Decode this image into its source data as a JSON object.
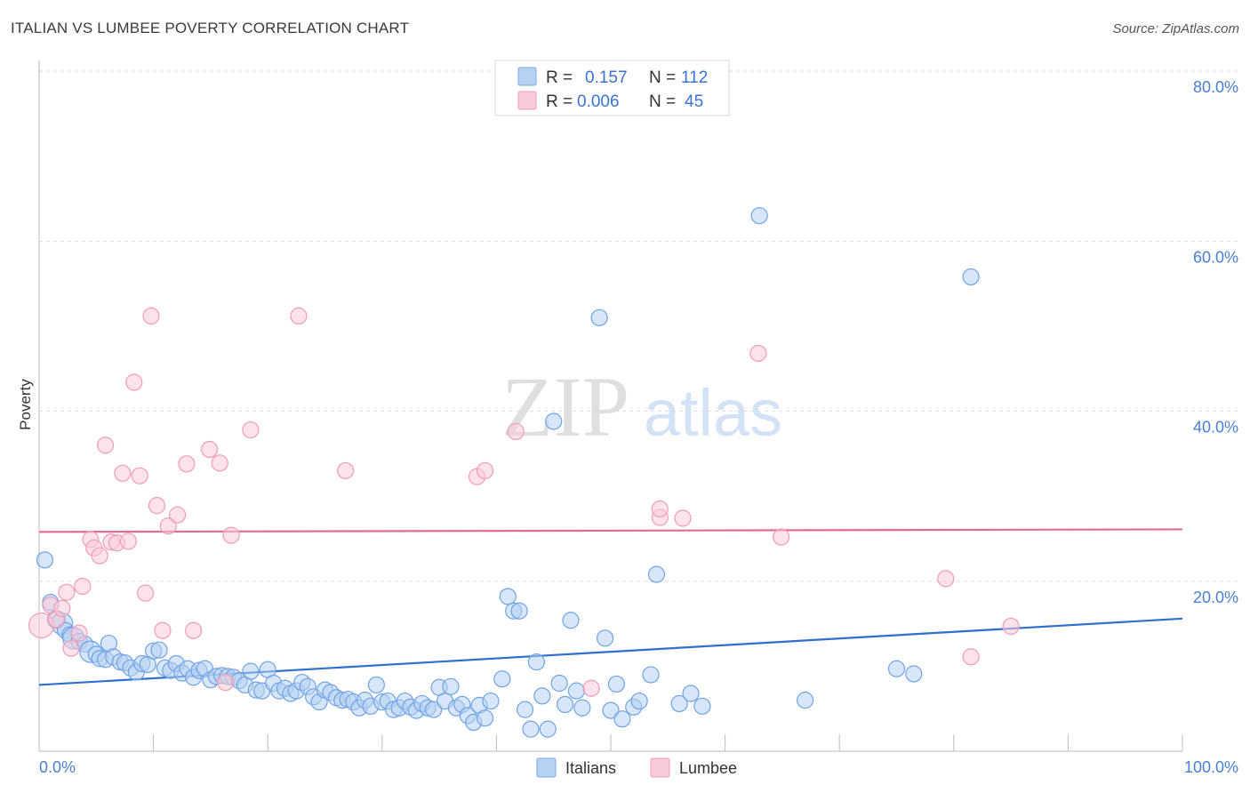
{
  "header": {
    "title": "ITALIAN VS LUMBEE POVERTY CORRELATION CHART",
    "source": "Source: ZipAtlas.com"
  },
  "watermark": {
    "zip": "ZIP",
    "atlas": "atlas"
  },
  "legend": {
    "rows": [
      {
        "r_label": "R =",
        "r_value": "0.157",
        "n_label": "N =",
        "n_value": "112",
        "color": "#a8c8f0"
      },
      {
        "r_label": "R =",
        "r_value": "0.006",
        "n_label": "N =",
        "n_value": "45",
        "color": "#f7b8cc"
      }
    ]
  },
  "chart_data": {
    "type": "scatter",
    "title": "ITALIAN VS LUMBEE POVERTY CORRELATION CHART",
    "xlabel": "",
    "ylabel": "Poverty",
    "xlim": [
      0,
      100
    ],
    "ylim": [
      0,
      80
    ],
    "x_tick_labels": [
      "0.0%",
      "100.0%"
    ],
    "y_ticks": [
      20,
      40,
      60,
      80
    ],
    "y_tick_labels": [
      "20.0%",
      "40.0%",
      "60.0%",
      "80.0%"
    ],
    "grid": true,
    "legend_position": "top-center",
    "series": [
      {
        "name": "Italians",
        "color": "#6fa3e6",
        "fill": "#b7d1f3",
        "trend": {
          "x": [
            0,
            100
          ],
          "y": [
            7.8,
            15.6
          ],
          "color": "#2f6fcf"
        },
        "points": [
          [
            0.5,
            22.5,
            9
          ],
          [
            1,
            17.5,
            9
          ],
          [
            1.5,
            15.5,
            10
          ],
          [
            2,
            15,
            12
          ],
          [
            2.3,
            14.2,
            9
          ],
          [
            2.7,
            13.7,
            9
          ],
          [
            3,
            13.3,
            12
          ],
          [
            3.5,
            12.9,
            9
          ],
          [
            4,
            12.6,
            9
          ],
          [
            4.5,
            11.7,
            12
          ],
          [
            5,
            11.4,
            9
          ],
          [
            5.3,
            10.9,
            9
          ],
          [
            5.8,
            10.8,
            9
          ],
          [
            6.1,
            12.7,
            9
          ],
          [
            6.5,
            11.1,
            9
          ],
          [
            7.1,
            10.5,
            9
          ],
          [
            7.5,
            10.4,
            9
          ],
          [
            8,
            9.8,
            9
          ],
          [
            8.5,
            9.3,
            9
          ],
          [
            9,
            10.3,
            9
          ],
          [
            9.5,
            10.2,
            9
          ],
          [
            10,
            11.8,
            9
          ],
          [
            10.5,
            11.9,
            9
          ],
          [
            11,
            9.8,
            9
          ],
          [
            11.5,
            9.5,
            9
          ],
          [
            12,
            10.3,
            9
          ],
          [
            12.5,
            9.2,
            9
          ],
          [
            13,
            9.7,
            9
          ],
          [
            13.5,
            8.7,
            9
          ],
          [
            14,
            9.5,
            9
          ],
          [
            14.5,
            9.7,
            9
          ],
          [
            15,
            8.4,
            9
          ],
          [
            15.5,
            8.8,
            9
          ],
          [
            16,
            8.9,
            9
          ],
          [
            16.5,
            8.8,
            9
          ],
          [
            17,
            8.7,
            9
          ],
          [
            17.5,
            8.3,
            9
          ],
          [
            18,
            7.8,
            9
          ],
          [
            18.5,
            9.4,
            9
          ],
          [
            19,
            7.2,
            9
          ],
          [
            19.5,
            7.1,
            9
          ],
          [
            20,
            9.6,
            9
          ],
          [
            20.5,
            8,
            9
          ],
          [
            21,
            7.1,
            9
          ],
          [
            21.5,
            7.4,
            9
          ],
          [
            22,
            6.8,
            9
          ],
          [
            22.5,
            7.1,
            9
          ],
          [
            23,
            8.1,
            9
          ],
          [
            23.5,
            7.6,
            9
          ],
          [
            24,
            6.4,
            9
          ],
          [
            24.5,
            5.8,
            9
          ],
          [
            25,
            7.2,
            9
          ],
          [
            25.5,
            6.9,
            9
          ],
          [
            26,
            6.3,
            9
          ],
          [
            26.5,
            6,
            9
          ],
          [
            27,
            6.1,
            9
          ],
          [
            27.5,
            5.8,
            9
          ],
          [
            28,
            5.1,
            9
          ],
          [
            28.5,
            6,
            9
          ],
          [
            29,
            5.3,
            9
          ],
          [
            29.5,
            7.8,
            9
          ],
          [
            30,
            5.8,
            9
          ],
          [
            30.5,
            5.9,
            9
          ],
          [
            31,
            4.9,
            9
          ],
          [
            31.5,
            5.1,
            9
          ],
          [
            32,
            5.9,
            9
          ],
          [
            32.5,
            5.2,
            9
          ],
          [
            33,
            4.8,
            9
          ],
          [
            33.5,
            5.6,
            9
          ],
          [
            34,
            5.1,
            9
          ],
          [
            34.5,
            4.9,
            9
          ],
          [
            35,
            7.5,
            9
          ],
          [
            35.5,
            5.9,
            9
          ],
          [
            36,
            7.6,
            9
          ],
          [
            36.5,
            5.1,
            9
          ],
          [
            37,
            5.5,
            9
          ],
          [
            37.5,
            4.2,
            9
          ],
          [
            38,
            3.4,
            9
          ],
          [
            38.5,
            5.4,
            9
          ],
          [
            39,
            3.9,
            9
          ],
          [
            39.5,
            5.9,
            9
          ],
          [
            40.5,
            8.5,
            9
          ],
          [
            41,
            18.2,
            9
          ],
          [
            41.5,
            16.5,
            9
          ],
          [
            42,
            16.5,
            9
          ],
          [
            42.5,
            4.9,
            9
          ],
          [
            43,
            2.6,
            9
          ],
          [
            43.5,
            10.5,
            9
          ],
          [
            44,
            6.5,
            9
          ],
          [
            44.5,
            2.6,
            9
          ],
          [
            45,
            38.8,
            9
          ],
          [
            45.5,
            8,
            9
          ],
          [
            46,
            5.5,
            9
          ],
          [
            46.5,
            15.4,
            9
          ],
          [
            47,
            7.1,
            9
          ],
          [
            47.5,
            5.1,
            9
          ],
          [
            49,
            51,
            9
          ],
          [
            49.5,
            13.3,
            9
          ],
          [
            50,
            4.8,
            9
          ],
          [
            50.5,
            7.9,
            9
          ],
          [
            51,
            3.8,
            9
          ],
          [
            52,
            5.2,
            9
          ],
          [
            52.5,
            5.9,
            9
          ],
          [
            53.5,
            9,
            9
          ],
          [
            54,
            20.8,
            9
          ],
          [
            56,
            5.6,
            9
          ],
          [
            57,
            6.8,
            9
          ],
          [
            58,
            5.3,
            9
          ],
          [
            63,
            63,
            9
          ],
          [
            67,
            6,
            9
          ],
          [
            75,
            9.7,
            9
          ],
          [
            76.5,
            9.1,
            9
          ],
          [
            81.5,
            55.8,
            9
          ]
        ]
      },
      {
        "name": "Lumbee",
        "color": "#f29bb6",
        "fill": "#f9cad8",
        "trend": {
          "x": [
            0,
            100
          ],
          "y": [
            25.8,
            26.1
          ],
          "color": "#e36a93"
        },
        "points": [
          [
            0.2,
            14.8,
            14
          ],
          [
            1,
            17.2,
            9
          ],
          [
            1.5,
            15.5,
            9
          ],
          [
            2,
            16.8,
            9
          ],
          [
            2.4,
            18.7,
            9
          ],
          [
            2.8,
            12.1,
            9
          ],
          [
            3.5,
            13.9,
            9
          ],
          [
            3.8,
            19.4,
            9
          ],
          [
            4.5,
            24.9,
            9
          ],
          [
            4.8,
            23.9,
            9
          ],
          [
            5.3,
            23,
            9
          ],
          [
            5.8,
            36,
            9
          ],
          [
            6.3,
            24.6,
            9
          ],
          [
            6.8,
            24.5,
            9
          ],
          [
            7.3,
            32.7,
            9
          ],
          [
            7.8,
            24.7,
            9
          ],
          [
            8.3,
            43.4,
            9
          ],
          [
            8.8,
            32.4,
            9
          ],
          [
            9.3,
            18.6,
            9
          ],
          [
            9.8,
            51.2,
            9
          ],
          [
            10.3,
            28.9,
            9
          ],
          [
            10.8,
            14.2,
            9
          ],
          [
            11.3,
            26.5,
            9
          ],
          [
            12.1,
            27.8,
            9
          ],
          [
            12.9,
            33.8,
            9
          ],
          [
            13.5,
            14.2,
            9
          ],
          [
            14.9,
            35.5,
            9
          ],
          [
            15.8,
            33.9,
            9
          ],
          [
            16.3,
            8.1,
            9
          ],
          [
            16.8,
            25.4,
            9
          ],
          [
            18.5,
            37.8,
            9
          ],
          [
            22.7,
            51.2,
            9
          ],
          [
            26.8,
            33,
            9
          ],
          [
            38.3,
            32.3,
            9
          ],
          [
            39,
            33,
            9
          ],
          [
            41.7,
            37.6,
            9
          ],
          [
            48.3,
            7.4,
            9
          ],
          [
            54.3,
            27.5,
            9
          ],
          [
            54.3,
            28.5,
            9
          ],
          [
            56.3,
            27.4,
            9
          ],
          [
            62.9,
            46.8,
            9
          ],
          [
            64.9,
            25.2,
            9
          ],
          [
            79.3,
            20.3,
            9
          ],
          [
            81.5,
            11.1,
            9
          ],
          [
            85,
            14.7,
            9
          ]
        ]
      }
    ]
  },
  "bottom_legend": {
    "items": [
      "Italians",
      "Lumbee"
    ]
  }
}
